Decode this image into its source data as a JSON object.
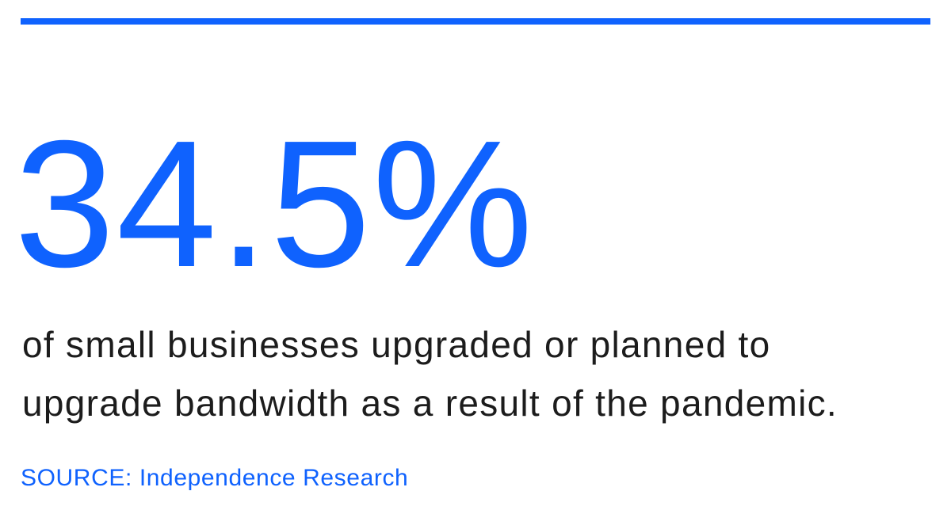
{
  "colors": {
    "accent": "#0f62fe",
    "text": "#1c1c1c",
    "background": "#ffffff"
  },
  "stat": {
    "value": "34.5%",
    "description_lines": [
      "of small businesses upgraded or planned to",
      "upgrade bandwidth as a result of the pandemic."
    ],
    "source": "SOURCE: Independence Research"
  }
}
